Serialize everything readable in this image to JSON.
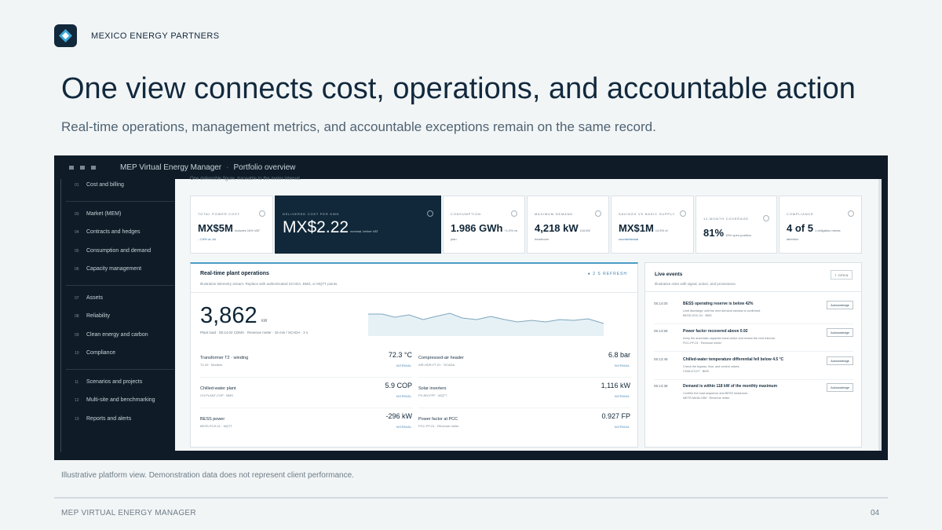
{
  "brand": {
    "name": "MEXICO ENERGY PARTNERS"
  },
  "headline": "One view connects cost, operations, and accountable action",
  "subhead": "Real-time operations, management metrics, and accountable exceptions remain on the same record.",
  "app": {
    "window_title": "MEP Virtual Energy Manager",
    "breadcrumb_sep": "·",
    "page": "Portfolio overview",
    "caption": "One defensible figure, traceable to the meter interval.",
    "sidebar": [
      {
        "num": "01",
        "label": "Cost and billing"
      },
      {
        "num": "03",
        "label": "Market (MEM)"
      },
      {
        "num": "04",
        "label": "Contracts and hedges"
      },
      {
        "num": "05",
        "label": "Consumption and demand"
      },
      {
        "num": "06",
        "label": "Capacity management"
      },
      {
        "num": "07",
        "label": "Assets"
      },
      {
        "num": "08",
        "label": "Reliability"
      },
      {
        "num": "09",
        "label": "Clean energy and carbon"
      },
      {
        "num": "10",
        "label": "Compliance"
      },
      {
        "num": "11",
        "label": "Scenarios and projects"
      },
      {
        "num": "12",
        "label": "Multi-site and benchmarking"
      },
      {
        "num": "13",
        "label": "Reports and alerts"
      }
    ],
    "kpis": [
      {
        "label": "TOTAL POWER COST",
        "value": "MX$5M",
        "note": "Includes 16% VAT",
        "sub": "- 2.8% vs Jul"
      },
      {
        "label": "DELIVERED COST PER KWH",
        "value": "MX$2.22",
        "note": "nominal, before VAT",
        "sub": ""
      },
      {
        "label": "CONSUMPTION",
        "value": "1.986 GWh",
        "note": "+1.0% vs",
        "sub": "plan"
      },
      {
        "label": "MAXIMUM DEMAND",
        "value": "4,218 kW",
        "note": "118 kW",
        "sub": "headroom"
      },
      {
        "label": "SAVINGS VS BASIC SUPPLY",
        "value": "MX$1M",
        "note": "14.5% of",
        "sub": "counterfactual"
      },
      {
        "label": "12-MONTH COVERAGE",
        "value": "81%",
        "note": "19% open position",
        "sub": ""
      },
      {
        "label": "COMPLIANCE",
        "value": "4 of 5",
        "note": "1 obligation needs",
        "sub": "attention"
      }
    ],
    "operations": {
      "title": "Real-time plant operations",
      "subtitle": "Illustrative telemetry stream. Replace with authenticated SCADA, BMS, or MQTT points.",
      "refresh": "● 2 S REFRESH",
      "load_value": "3,862",
      "load_unit": "kW",
      "load_caption": "Plant load · 05:14:02 CDMX · Revenue meter · 15 min / SCADA · 2 s",
      "metrics": [
        {
          "name": "Transformer T2 · winding",
          "src": "T2-49 · Modbus",
          "value": "72.3 °C",
          "status": "NORMAL"
        },
        {
          "name": "Compressed-air header",
          "src": "AIR-HDR-FT-01 · OCADA",
          "value": "6.8 bar",
          "status": "NORMAL"
        },
        {
          "name": "Chilled-water plant",
          "src": "CH-PLANT-COP · BMS",
          "value": "5.9 COP",
          "status": "NORMAL"
        },
        {
          "name": "Solar inverters",
          "src": "PV-INV-FFF · MQTT",
          "value": "1,116 kW",
          "status": "NORMAL"
        },
        {
          "name": "BESS power",
          "src": "BESS-PCS-01 · MQTT",
          "value": "-296 kW",
          "status": "NORMAL"
        },
        {
          "name": "Power factor at PCC",
          "src": "PCC-PF-01 · Revenue meter",
          "value": "0.927 FP",
          "status": "NORMAL"
        }
      ]
    },
    "events": {
      "title": "Live events",
      "subtitle": "Illustrative rules with signal, action, and provenance.",
      "open_label": "7 OPEN",
      "ack_label": "Acknowledge",
      "items": [
        {
          "time": "05:14:00",
          "name": "BESS operating reserve is below 42%",
          "desc": "Limit discharge until the next demand window is confirmed.",
          "src": "BESS-SOC-01 · BMS"
        },
        {
          "time": "05:13:58",
          "name": "Power factor recovered above 0.92",
          "desc": "Keep the automatic capacitor bank active and review the next interval.",
          "src": "PCC-PF-01 · Revenue meter"
        },
        {
          "time": "05:13:48",
          "name": "Chilled-water temperature differential fell below 4.5 °C",
          "desc": "Check the bypass, flow, and control valves.",
          "src": "CHW-DT-DT · BMS"
        },
        {
          "time": "05:13:38",
          "name": "Demand is within 118 kW of the monthly maximum",
          "desc": "Confirm the load sequence and BESS headroom.",
          "src": "METR-MAIN-15M · Revenue meter"
        }
      ]
    }
  },
  "caption": "Illustrative platform view. Demonstration data does not represent client performance.",
  "footer": {
    "left": "MEP VIRTUAL ENERGY MANAGER",
    "page": "04"
  },
  "colors": {
    "navy": "#12283b",
    "dark_panel": "#0f1c27",
    "accent_blue": "#4b9cc4"
  }
}
